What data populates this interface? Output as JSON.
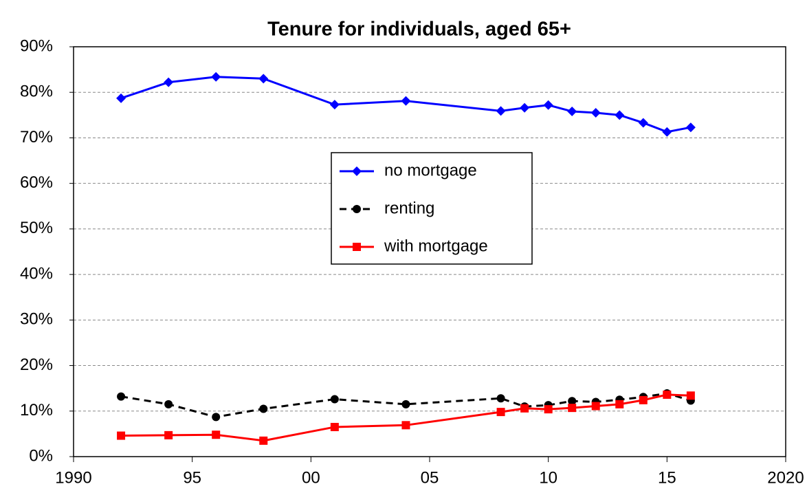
{
  "chart_data": {
    "type": "line",
    "title": "Tenure for individuals, aged 65+",
    "x": [
      1992,
      1994,
      1996,
      1998,
      2001,
      2004,
      2008,
      2009,
      2010,
      2011,
      2012,
      2013,
      2014,
      2015,
      2016
    ],
    "series": [
      {
        "name": "no mortgage",
        "color": "#0000ff",
        "marker": "diamond",
        "dashed": false,
        "values": [
          78.7,
          82.2,
          83.4,
          83.0,
          77.3,
          78.1,
          75.9,
          76.6,
          77.2,
          75.8,
          75.5,
          75.0,
          73.3,
          71.3,
          72.3
        ]
      },
      {
        "name": "renting",
        "color": "#000000",
        "marker": "circle",
        "dashed": true,
        "values": [
          13.2,
          11.5,
          8.7,
          10.5,
          12.6,
          11.5,
          12.8,
          11.0,
          11.3,
          12.2,
          12.0,
          12.5,
          13.1,
          13.9,
          12.3
        ]
      },
      {
        "name": "with mortgage",
        "color": "#ff0000",
        "marker": "square",
        "dashed": false,
        "values": [
          4.6,
          4.7,
          4.8,
          3.5,
          6.5,
          6.9,
          9.8,
          10.6,
          10.4,
          10.7,
          11.1,
          11.5,
          12.4,
          13.6,
          13.4
        ]
      }
    ],
    "xlim": [
      1990,
      2020
    ],
    "xticks": [
      1990,
      {
        "value": 1995,
        "label": "95"
      },
      {
        "value": 2000,
        "label": "00"
      },
      {
        "value": 2005,
        "label": "05"
      },
      {
        "value": 2010,
        "label": "10"
      },
      {
        "value": 2015,
        "label": "15"
      },
      2020
    ],
    "ylim": [
      0,
      90
    ],
    "yticks": [
      {
        "value": 0,
        "label": "0%"
      },
      {
        "value": 10,
        "label": "10%"
      },
      {
        "value": 20,
        "label": "20%"
      },
      {
        "value": 30,
        "label": "30%"
      },
      {
        "value": 40,
        "label": "40%"
      },
      {
        "value": 50,
        "label": "50%"
      },
      {
        "value": 60,
        "label": "60%"
      },
      {
        "value": 70,
        "label": "70%"
      },
      {
        "value": 80,
        "label": "80%"
      },
      {
        "value": 90,
        "label": "90%"
      }
    ],
    "grid": true,
    "legend": "center"
  }
}
